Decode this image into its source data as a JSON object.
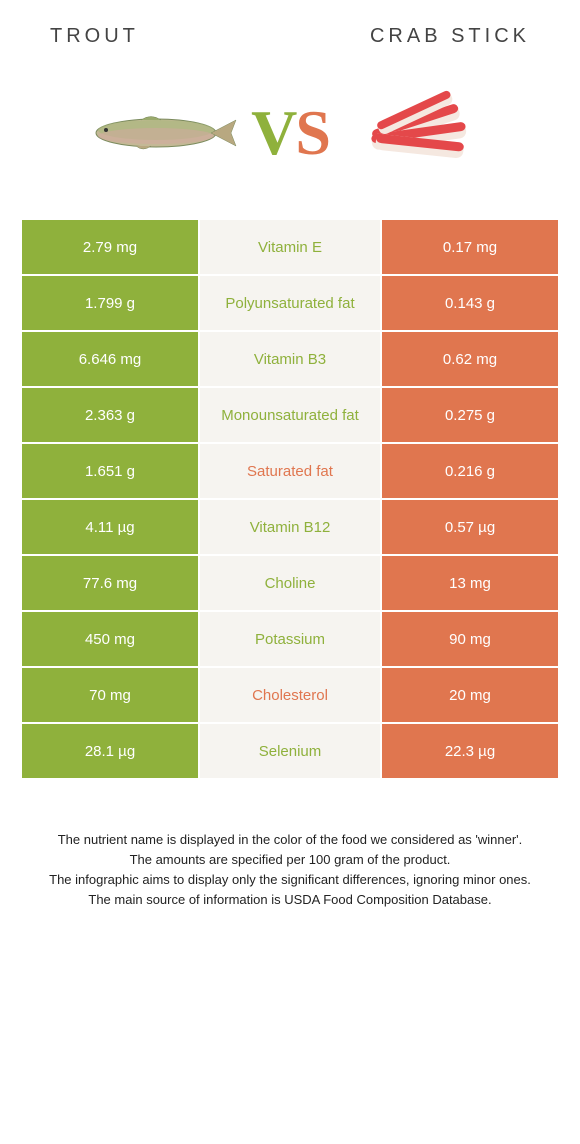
{
  "header": {
    "left": "TROUT",
    "right": "CRAB STICK"
  },
  "vs": {
    "v": "V",
    "s": "S"
  },
  "colors": {
    "green": "#8fb13c",
    "orange": "#e0764f",
    "mid_bg": "#f6f4f0"
  },
  "rows": [
    {
      "left": "2.79 mg",
      "label": "Vitamin E",
      "right": "0.17 mg",
      "winner": "left"
    },
    {
      "left": "1.799 g",
      "label": "Polyunsaturated fat",
      "right": "0.143 g",
      "winner": "left"
    },
    {
      "left": "6.646 mg",
      "label": "Vitamin B3",
      "right": "0.62 mg",
      "winner": "left"
    },
    {
      "left": "2.363 g",
      "label": "Monounsaturated fat",
      "right": "0.275 g",
      "winner": "left"
    },
    {
      "left": "1.651 g",
      "label": "Saturated fat",
      "right": "0.216 g",
      "winner": "right"
    },
    {
      "left": "4.11 µg",
      "label": "Vitamin B12",
      "right": "0.57 µg",
      "winner": "left"
    },
    {
      "left": "77.6 mg",
      "label": "Choline",
      "right": "13 mg",
      "winner": "left"
    },
    {
      "left": "450 mg",
      "label": "Potassium",
      "right": "90 mg",
      "winner": "left"
    },
    {
      "left": "70 mg",
      "label": "Cholesterol",
      "right": "20 mg",
      "winner": "right"
    },
    {
      "left": "28.1 µg",
      "label": "Selenium",
      "right": "22.3 µg",
      "winner": "left"
    }
  ],
  "footer": {
    "line1": "The nutrient name is displayed in the color of the food we considered as 'winner'.",
    "line2": "The amounts are specified per 100 gram of the product.",
    "line3": "The infographic aims to display only the significant differences, ignoring minor ones.",
    "line4": "The main source of information is USDA Food Composition Database."
  }
}
